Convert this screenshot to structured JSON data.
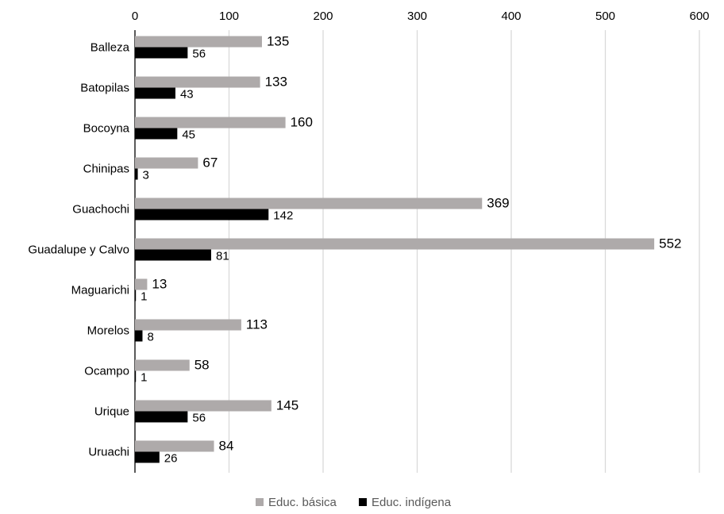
{
  "chart_data": {
    "type": "bar",
    "orientation": "horizontal",
    "categories": [
      "Balleza",
      "Batopilas",
      "Bocoyna",
      "Chinipas",
      "Guachochi",
      "Guadalupe y Calvo",
      "Maguarichi",
      "Morelos",
      "Ocampo",
      "Urique",
      "Uruachi"
    ],
    "series": [
      {
        "name": "Educ. básica",
        "color": "#aeaaaa",
        "values": [
          135,
          133,
          160,
          67,
          369,
          552,
          13,
          113,
          58,
          145,
          84
        ]
      },
      {
        "name": "Educ. indígena",
        "color": "#000000",
        "values": [
          56,
          43,
          45,
          3,
          142,
          81,
          1,
          8,
          1,
          56,
          26
        ]
      }
    ],
    "xlim": [
      0,
      600
    ],
    "xticks": [
      0,
      100,
      200,
      300,
      400,
      500,
      600
    ],
    "x_axis_position": "top",
    "grid": "vertical",
    "legend_position": "bottom"
  }
}
